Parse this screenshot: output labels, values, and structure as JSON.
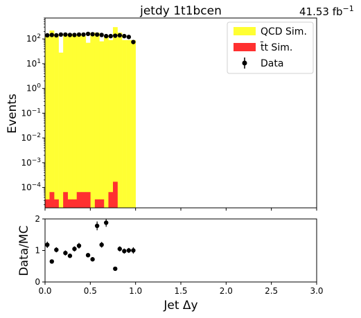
{
  "chart_data": [
    {
      "panel": "main",
      "type": "bar",
      "title": "jetdy  1t1bcen",
      "lumi_text": "41.53 fb",
      "lumi_exponent": "−1",
      "xlabel": "Jet Δy",
      "ylabel": "Events",
      "xlim": [
        0,
        3
      ],
      "ylim": [
        1.5e-05,
        700
      ],
      "yscale": "log",
      "y_ticks": [
        {
          "value": 0.0001,
          "base": "10",
          "exp": "−4"
        },
        {
          "value": 0.001,
          "base": "10",
          "exp": "−3"
        },
        {
          "value": 0.01,
          "base": "10",
          "exp": "−2"
        },
        {
          "value": 0.1,
          "base": "10",
          "exp": "−1"
        },
        {
          "value": 1,
          "base": "10",
          "exp": "0"
        },
        {
          "value": 10,
          "base": "10",
          "exp": "1"
        },
        {
          "value": 100,
          "base": "10",
          "exp": "2"
        }
      ],
      "bin_edges": [
        0,
        0.05,
        0.1,
        0.15,
        0.2,
        0.25,
        0.3,
        0.35,
        0.4,
        0.45,
        0.5,
        0.55,
        0.6,
        0.65,
        0.7,
        0.75,
        0.8,
        0.85,
        0.9,
        0.95,
        1.0
      ],
      "series": [
        {
          "name": "QCD Sim.",
          "kind": "hist",
          "color": "#ffff33",
          "values": [
            130,
            220,
            150,
            28,
            150,
            160,
            140,
            150,
            130,
            70,
            180,
            180,
            80,
            130,
            90,
            300,
            180,
            90,
            90,
            90
          ]
        },
        {
          "name": "t̄t Sim.",
          "kind": "hist",
          "color": "#ff3030",
          "values": [
            3.3e-05,
            6.5e-05,
            3.3e-05,
            0,
            6.5e-05,
            3.3e-05,
            3.3e-05,
            6.5e-05,
            6.5e-05,
            6.5e-05,
            0,
            3.3e-05,
            3.3e-05,
            0,
            6.5e-05,
            0.00017,
            0,
            0,
            0,
            0
          ]
        },
        {
          "name": "Data",
          "kind": "points",
          "color": "#000000",
          "x": [
            0.025,
            0.075,
            0.125,
            0.175,
            0.225,
            0.275,
            0.325,
            0.375,
            0.425,
            0.475,
            0.525,
            0.575,
            0.625,
            0.675,
            0.725,
            0.775,
            0.825,
            0.875,
            0.925,
            0.975
          ],
          "values": [
            140,
            145,
            140,
            150,
            150,
            145,
            145,
            150,
            150,
            160,
            155,
            150,
            145,
            130,
            130,
            135,
            140,
            130,
            120,
            75
          ]
        }
      ],
      "legend": {
        "position": "top-right",
        "labels": [
          "QCD Sim.",
          "t̄t Sim.",
          "Data"
        ]
      }
    },
    {
      "panel": "ratio",
      "type": "scatter",
      "ylabel": "Data/MC",
      "xlabel": "Jet Δy",
      "xlim": [
        0,
        3
      ],
      "ylim": [
        0,
        2
      ],
      "x_ticks": [
        "0.0",
        "0.5",
        "1.0",
        "1.5",
        "2.0",
        "2.5",
        "3.0"
      ],
      "y_ticks": [
        "0",
        "1",
        "2"
      ],
      "x": [
        0.025,
        0.075,
        0.125,
        0.225,
        0.275,
        0.325,
        0.375,
        0.475,
        0.525,
        0.575,
        0.625,
        0.675,
        0.775,
        0.825,
        0.875,
        0.925,
        0.975
      ],
      "values": [
        1.18,
        0.65,
        1.02,
        0.92,
        0.83,
        1.05,
        1.15,
        0.85,
        0.72,
        1.78,
        1.18,
        1.88,
        0.42,
        1.05,
        0.98,
        1.0,
        1.0
      ],
      "errors": [
        0.1,
        0.05,
        0.08,
        0.08,
        0.07,
        0.08,
        0.09,
        0.07,
        0.06,
        0.14,
        0.09,
        0.13,
        0.03,
        0.08,
        0.08,
        0.08,
        0.1
      ]
    }
  ]
}
